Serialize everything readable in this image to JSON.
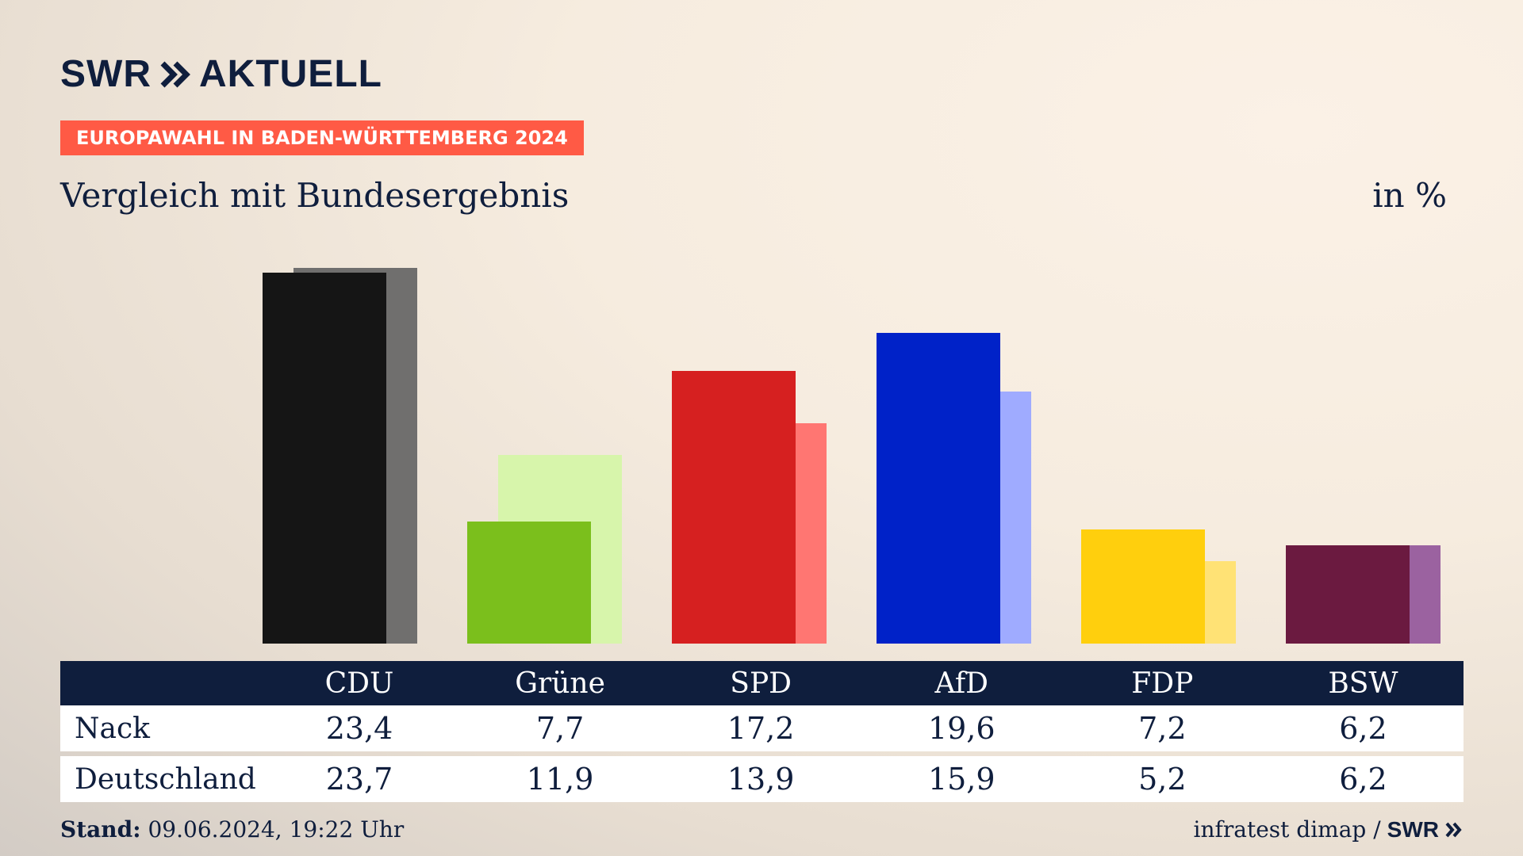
{
  "header": {
    "logo_swr": "SWR",
    "logo_aktuell": "AKTUELL",
    "badge": "EUROPAWAHL IN BADEN-WÜRTTEMBERG 2024",
    "subtitle": "Vergleich mit Bundesergebnis",
    "unit": "in %"
  },
  "colors": {
    "brand_navy": "#0f1e3d",
    "badge_red": "#ff5a45"
  },
  "chart_data": {
    "type": "bar",
    "title": "Vergleich mit Bundesergebnis",
    "ylabel": "in %",
    "ylim": [
      0,
      24
    ],
    "categories": [
      "CDU",
      "Grüne",
      "SPD",
      "AfD",
      "FDP",
      "BSW"
    ],
    "series": [
      {
        "name": "Nack",
        "values": [
          23.4,
          7.7,
          17.2,
          19.6,
          7.2,
          6.2
        ],
        "display": [
          "23,4",
          "7,7",
          "17,2",
          "19,6",
          "7,2",
          "6,2"
        ],
        "colors": [
          "#151515",
          "#7bbf1c",
          "#d62020",
          "#0022c8",
          "#ffcf0d",
          "#6b1a40"
        ]
      },
      {
        "name": "Deutschland",
        "values": [
          23.7,
          11.9,
          13.9,
          15.9,
          5.2,
          6.2
        ],
        "display": [
          "23,7",
          "11,9",
          "13,9",
          "15,9",
          "5,2",
          "6,2"
        ],
        "colors": [
          "#706f6e",
          "#d7f5ab",
          "#ff7672",
          "#9fabff",
          "#ffe275",
          "#9b62a0"
        ]
      }
    ]
  },
  "footer": {
    "stand_label": "Stand:",
    "stand_value": "09.06.2024, 19:22 Uhr",
    "source": "infratest dimap /",
    "source_logo": "SWR"
  }
}
